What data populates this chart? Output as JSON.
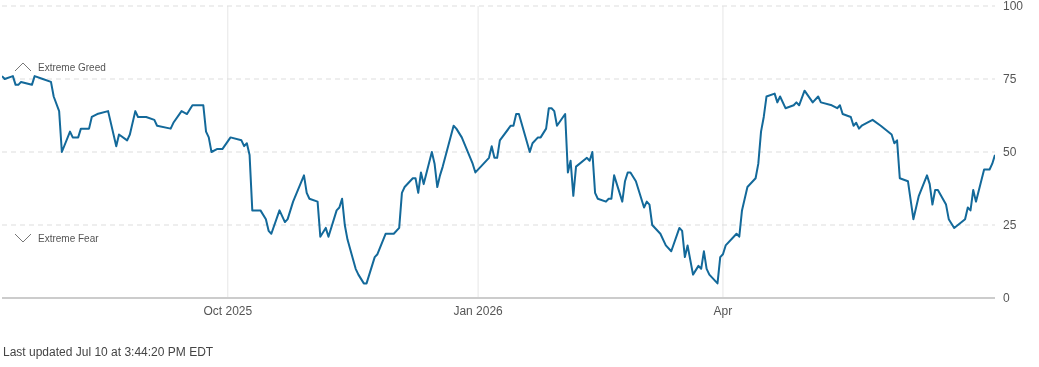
{
  "chart_data": {
    "type": "line",
    "x": [
      "2025-07-10",
      "2025-07-11",
      "2025-07-14",
      "2025-07-15",
      "2025-07-16",
      "2025-07-17",
      "2025-07-21",
      "2025-07-22",
      "2025-07-25",
      "2025-07-28",
      "2025-07-29",
      "2025-07-31",
      "2025-08-01",
      "2025-08-04",
      "2025-08-05",
      "2025-08-07",
      "2025-08-08",
      "2025-08-11",
      "2025-08-12",
      "2025-08-14",
      "2025-08-18",
      "2025-08-21",
      "2025-08-22",
      "2025-08-25",
      "2025-08-26",
      "2025-08-28",
      "2025-08-29",
      "2025-09-01",
      "2025-09-04",
      "2025-09-05",
      "2025-09-10",
      "2025-09-11",
      "2025-09-14",
      "2025-09-16",
      "2025-09-18",
      "2025-09-22",
      "2025-09-23",
      "2025-09-24",
      "2025-09-25",
      "2025-09-27",
      "2025-09-29",
      "2025-10-02",
      "2025-10-06",
      "2025-10-07",
      "2025-10-08",
      "2025-10-09",
      "2025-10-10",
      "2025-10-13",
      "2025-10-15",
      "2025-10-16",
      "2025-10-17",
      "2025-10-20",
      "2025-10-22",
      "2025-10-23",
      "2025-10-25",
      "2025-10-29",
      "2025-10-30",
      "2025-10-31",
      "2025-11-03",
      "2025-11-04",
      "2025-11-06",
      "2025-11-07",
      "2025-11-10",
      "2025-11-11",
      "2025-11-12",
      "2025-11-13",
      "2025-11-14",
      "2025-11-17",
      "2025-11-18",
      "2025-11-20",
      "2025-11-21",
      "2025-11-24",
      "2025-11-25",
      "2025-11-28",
      "2025-12-01",
      "2025-12-03",
      "2025-12-04",
      "2025-12-05",
      "2025-12-08",
      "2025-12-09",
      "2025-12-10",
      "2025-12-11",
      "2025-12-12",
      "2025-12-15",
      "2025-12-16",
      "2025-12-17",
      "2025-12-18",
      "2025-12-19",
      "2025-12-23",
      "2025-12-24",
      "2025-12-26",
      "2025-12-30",
      "2025-12-31",
      "2026-01-02",
      "2026-01-05",
      "2026-01-06",
      "2026-01-07",
      "2026-01-08",
      "2026-01-09",
      "2026-01-13",
      "2026-01-14",
      "2026-01-15",
      "2026-01-16",
      "2026-01-20",
      "2026-01-21",
      "2026-01-23",
      "2026-01-24",
      "2026-01-26",
      "2026-01-27",
      "2026-01-28",
      "2026-01-29",
      "2026-01-30",
      "2026-02-02",
      "2026-02-03",
      "2026-02-04",
      "2026-02-05",
      "2026-02-06",
      "2026-02-10",
      "2026-02-11",
      "2026-02-12",
      "2026-02-13",
      "2026-02-14",
      "2026-02-17",
      "2026-02-18",
      "2026-02-19",
      "2026-02-20",
      "2026-02-23",
      "2026-02-24",
      "2026-02-25",
      "2026-02-26",
      "2026-02-28",
      "2026-03-03",
      "2026-03-04",
      "2026-03-05",
      "2026-03-06",
      "2026-03-09",
      "2026-03-11",
      "2026-03-13",
      "2026-03-16",
      "2026-03-17",
      "2026-03-18",
      "2026-03-19",
      "2026-03-21",
      "2026-03-23",
      "2026-03-24",
      "2026-03-25",
      "2026-03-26",
      "2026-03-27",
      "2026-03-30",
      "2026-03-31",
      "2026-04-01",
      "2026-04-02",
      "2026-04-06",
      "2026-04-07",
      "2026-04-08",
      "2026-04-10",
      "2026-04-13",
      "2026-04-14",
      "2026-04-15",
      "2026-04-16",
      "2026-04-17",
      "2026-04-20",
      "2026-04-21",
      "2026-04-22",
      "2026-04-24",
      "2026-04-27",
      "2026-04-28",
      "2026-04-29",
      "2026-05-01",
      "2026-05-04",
      "2026-05-06",
      "2026-05-07",
      "2026-05-11",
      "2026-05-13",
      "2026-05-14",
      "2026-05-15",
      "2026-05-18",
      "2026-05-19",
      "2026-05-20",
      "2026-05-21",
      "2026-05-22",
      "2026-05-26",
      "2026-05-29",
      "2026-06-02",
      "2026-06-03",
      "2026-06-04",
      "2026-06-05",
      "2026-06-08",
      "2026-06-10",
      "2026-06-12",
      "2026-06-15",
      "2026-06-16",
      "2026-06-17",
      "2026-06-18",
      "2026-06-19",
      "2026-06-22",
      "2026-06-23",
      "2026-06-25",
      "2026-06-29",
      "2026-06-30",
      "2026-07-01",
      "2026-07-02",
      "2026-07-03",
      "2026-07-06",
      "2026-07-08",
      "2026-07-09",
      "2026-07-10"
    ],
    "series": [
      {
        "color": "#13699a",
        "values": [
          76,
          75,
          76,
          73,
          73,
          74,
          73,
          76,
          75,
          74,
          69,
          64,
          50,
          57,
          55,
          55,
          58,
          58,
          62,
          63,
          64,
          52,
          56,
          54,
          56,
          64,
          62,
          62,
          61,
          59,
          58,
          60,
          64,
          63,
          66,
          66,
          57,
          55,
          50,
          51,
          51,
          55,
          54,
          52,
          53,
          49,
          30,
          30,
          27,
          23,
          22,
          30,
          26,
          27,
          33,
          42,
          36,
          34,
          33,
          21,
          24,
          21,
          30,
          31,
          34,
          25,
          20,
          10,
          8,
          5,
          5,
          14,
          15,
          22,
          22,
          24,
          36,
          38,
          41,
          41,
          36,
          43,
          39,
          50,
          46,
          38,
          42,
          45,
          59,
          58,
          55,
          46,
          43,
          45,
          48,
          52,
          48,
          48,
          54,
          59,
          59,
          63,
          63,
          50,
          53,
          55,
          55,
          58,
          65,
          65,
          64,
          59,
          63,
          43,
          47,
          35,
          45,
          48,
          47,
          50,
          36,
          34,
          33,
          34,
          34,
          42,
          33,
          40,
          43,
          43,
          40,
          31,
          33,
          32,
          25,
          22,
          18,
          16,
          24,
          23,
          14,
          18,
          8,
          11,
          10,
          16,
          10,
          8,
          5,
          14,
          15,
          18,
          22,
          21,
          30,
          38,
          41,
          46,
          57,
          62,
          69,
          70,
          67,
          69,
          65,
          66,
          67,
          66,
          71,
          67,
          69,
          67,
          66,
          65,
          66,
          63,
          62,
          59,
          60,
          58,
          59,
          61,
          59,
          56,
          53,
          54,
          41,
          40,
          27,
          35,
          42,
          39,
          32,
          37,
          37,
          32,
          27,
          24,
          27,
          31,
          30,
          37,
          33,
          44,
          44,
          46,
          49
        ]
      }
    ],
    "xlim": [
      "2025-07-10",
      "2026-07-10"
    ],
    "xticks": [
      {
        "value": "2025-10-01",
        "label": "Oct 2025"
      },
      {
        "value": "2026-01-01",
        "label": "Jan 2026"
      },
      {
        "value": "2026-04-01",
        "label": "Apr"
      }
    ],
    "ylim": [
      0,
      100
    ],
    "yticks": [
      0,
      25,
      50,
      75,
      100
    ],
    "grid": true,
    "annotations": [
      "Extreme Greed",
      "Extreme Fear",
      "Last updated Jul 10 at 3:44:20 PM EDT"
    ]
  }
}
